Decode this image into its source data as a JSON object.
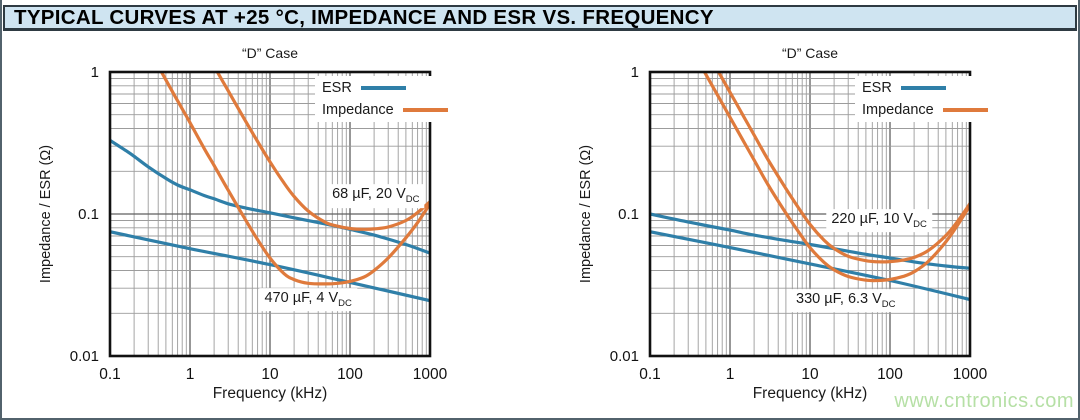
{
  "page": {
    "title": "TYPICAL CURVES AT +25 °C, IMPEDANCE AND ESR VS. FREQUENCY",
    "watermark": "www.cntronics.com"
  },
  "colors": {
    "esr": "#2f7fa8",
    "impedance": "#df7a3c",
    "title_bg": "#cfe4f1",
    "grid_minor": "#9c9c9c",
    "grid_major": "#5f5f5f",
    "plot_border": "#111111",
    "watermark": "#b6e0a6"
  },
  "chart_data": [
    {
      "type": "line",
      "title": "“D” Case",
      "xlabel": "Frequency (kHz)",
      "ylabel": "Impedance / ESR (Ω)",
      "xscale": "log",
      "yscale": "log",
      "xlim": [
        0.1,
        1000
      ],
      "ylim": [
        0.01,
        1
      ],
      "x_ticks": [
        "0.1",
        "1",
        "10",
        "100",
        "1000"
      ],
      "y_ticks": [
        "1",
        "0.1",
        "0.01"
      ],
      "grid": "log-minor-and-major",
      "legend_position": "top-right-inside",
      "legend": [
        {
          "label": "ESR",
          "color_key": "esr"
        },
        {
          "label": "Impedance",
          "color_key": "impedance"
        }
      ],
      "annotations": [
        {
          "label": "68 µF, 20 V",
          "sub": "DC",
          "at_x_khz": 210,
          "at_y_ohm": 0.133
        },
        {
          "label": "470 µF, 4 V",
          "sub": "DC",
          "at_x_khz": 30,
          "at_y_ohm": 0.0249
        }
      ],
      "series": [
        {
          "name": "ESR — 68 µF, 20 VDC",
          "role": "esr",
          "points": [
            [
              0.1,
              0.33
            ],
            [
              0.15,
              0.285
            ],
            [
              0.2,
              0.255
            ],
            [
              0.3,
              0.215
            ],
            [
              0.5,
              0.178
            ],
            [
              0.7,
              0.16
            ],
            [
              1,
              0.148
            ],
            [
              1.5,
              0.135
            ],
            [
              2,
              0.128
            ],
            [
              3,
              0.118
            ],
            [
              5,
              0.11
            ],
            [
              7,
              0.106
            ],
            [
              10,
              0.102
            ],
            [
              20,
              0.094
            ],
            [
              50,
              0.085
            ],
            [
              100,
              0.078
            ],
            [
              200,
              0.071
            ],
            [
              500,
              0.061
            ],
            [
              1000,
              0.053
            ]
          ]
        },
        {
          "name": "ESR — 470 µF, 4 VDC",
          "role": "esr",
          "points": [
            [
              0.1,
              0.075
            ],
            [
              1,
              0.057
            ],
            [
              10,
              0.044
            ],
            [
              100,
              0.033
            ],
            [
              1000,
              0.0245
            ]
          ]
        },
        {
          "name": "Impedance — 68 µF, 20 VDC",
          "role": "impedance",
          "points": [
            [
              1.5,
              1.47
            ],
            [
              2.2,
              1.0
            ],
            [
              3,
              0.737
            ],
            [
              5,
              0.447
            ],
            [
              7,
              0.324
            ],
            [
              10,
              0.233
            ],
            [
              15,
              0.165
            ],
            [
              20,
              0.133
            ],
            [
              30,
              0.105
            ],
            [
              50,
              0.087
            ],
            [
              70,
              0.082
            ],
            [
              100,
              0.079
            ],
            [
              150,
              0.078
            ],
            [
              200,
              0.0785
            ],
            [
              300,
              0.081
            ],
            [
              500,
              0.09
            ],
            [
              700,
              0.1025
            ],
            [
              1000,
              0.122
            ]
          ]
        },
        {
          "name": "Impedance — 470 µF, 4 VDC",
          "role": "impedance",
          "points": [
            [
              0.3,
              1.47
            ],
            [
              0.44,
              1.0
            ],
            [
              0.6,
              0.73
            ],
            [
              0.8,
              0.55
            ],
            [
              1,
              0.44
            ],
            [
              1.5,
              0.29
            ],
            [
              2,
              0.22
            ],
            [
              3,
              0.147
            ],
            [
              5,
              0.09
            ],
            [
              7,
              0.066
            ],
            [
              10,
              0.049
            ],
            [
              15,
              0.038
            ],
            [
              20,
              0.0345
            ],
            [
              30,
              0.0325
            ],
            [
              50,
              0.0322
            ],
            [
              70,
              0.0325
            ],
            [
              100,
              0.0335
            ],
            [
              150,
              0.036
            ],
            [
              200,
              0.04
            ],
            [
              300,
              0.049
            ],
            [
              500,
              0.068
            ],
            [
              700,
              0.087
            ],
            [
              1000,
              0.118
            ]
          ]
        }
      ]
    },
    {
      "type": "line",
      "title": "“D” Case",
      "xlabel": "Frequency (kHz)",
      "ylabel": "Impedance / ESR (Ω)",
      "xscale": "log",
      "yscale": "log",
      "xlim": [
        0.1,
        1000
      ],
      "ylim": [
        0.01,
        1
      ],
      "x_ticks": [
        "0.1",
        "1",
        "10",
        "100",
        "1000"
      ],
      "y_ticks": [
        "1",
        "0.1",
        "0.01"
      ],
      "grid": "log-minor-and-major",
      "legend_position": "top-right-inside",
      "legend": [
        {
          "label": "ESR",
          "color_key": "esr"
        },
        {
          "label": "Impedance",
          "color_key": "impedance"
        }
      ],
      "annotations": [
        {
          "label": "220 µF, 10 V",
          "sub": "DC",
          "at_x_khz": 73,
          "at_y_ohm": 0.09
        },
        {
          "label": "330 µF, 6.3 V",
          "sub": "DC",
          "at_x_khz": 28,
          "at_y_ohm": 0.0245
        }
      ],
      "series": [
        {
          "name": "ESR — 220 µF, 10 VDC",
          "role": "esr",
          "points": [
            [
              0.1,
              0.1
            ],
            [
              0.2,
              0.092
            ],
            [
              0.5,
              0.083
            ],
            [
              1,
              0.077
            ],
            [
              2,
              0.071
            ],
            [
              5,
              0.065
            ],
            [
              10,
              0.061
            ],
            [
              20,
              0.057
            ],
            [
              50,
              0.052
            ],
            [
              100,
              0.049
            ],
            [
              200,
              0.046
            ],
            [
              500,
              0.043
            ],
            [
              1000,
              0.0415
            ]
          ]
        },
        {
          "name": "ESR — 330 µF, 6.3 VDC",
          "role": "esr",
          "points": [
            [
              0.1,
              0.075
            ],
            [
              1,
              0.058
            ],
            [
              10,
              0.0445
            ],
            [
              100,
              0.034
            ],
            [
              1000,
              0.025
            ]
          ]
        },
        {
          "name": "Impedance — 220 µF, 10 VDC",
          "role": "impedance",
          "points": [
            [
              0.5,
              1.44
            ],
            [
              0.72,
              1.0
            ],
            [
              1,
              0.72
            ],
            [
              1.5,
              0.48
            ],
            [
              2,
              0.36
            ],
            [
              3,
              0.24
            ],
            [
              5,
              0.151
            ],
            [
              7,
              0.113
            ],
            [
              10,
              0.0845
            ],
            [
              15,
              0.0653
            ],
            [
              20,
              0.0571
            ],
            [
              30,
              0.0504
            ],
            [
              50,
              0.0469
            ],
            [
              70,
              0.0461
            ],
            [
              100,
              0.0462
            ],
            [
              150,
              0.0475
            ],
            [
              200,
              0.0495
            ],
            [
              300,
              0.0552
            ],
            [
              500,
              0.0706
            ],
            [
              700,
              0.0888
            ],
            [
              1000,
              0.1186
            ]
          ]
        },
        {
          "name": "Impedance — 330 µF, 6.3 VDC",
          "role": "impedance",
          "points": [
            [
              0.33,
              1.47
            ],
            [
              0.48,
              1.0
            ],
            [
              0.7,
              0.686
            ],
            [
              1,
              0.48
            ],
            [
              1.5,
              0.32
            ],
            [
              2,
              0.24
            ],
            [
              3,
              0.16
            ],
            [
              5,
              0.1014
            ],
            [
              7,
              0.0766
            ],
            [
              10,
              0.058
            ],
            [
              15,
              0.0456
            ],
            [
              20,
              0.0404
            ],
            [
              30,
              0.0363
            ],
            [
              50,
              0.0342
            ],
            [
              70,
              0.034
            ],
            [
              100,
              0.0346
            ],
            [
              150,
              0.0365
            ],
            [
              200,
              0.0392
            ],
            [
              300,
              0.0463
            ],
            [
              500,
              0.0638
            ],
            [
              700,
              0.0835
            ],
            [
              1000,
              0.1147
            ]
          ]
        }
      ]
    }
  ]
}
